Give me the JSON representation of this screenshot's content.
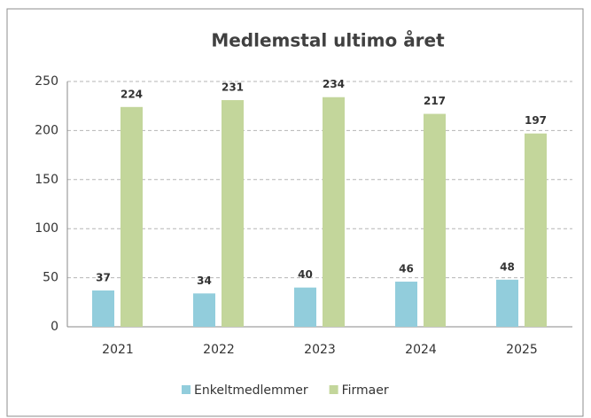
{
  "chart_data": {
    "type": "bar",
    "title": "Medlemstal ultimo året",
    "categories": [
      "2021",
      "2022",
      "2023",
      "2024",
      "2025"
    ],
    "series": [
      {
        "name": "Enkeltmedlemmer",
        "color": "#92cddc",
        "values": [
          37,
          34,
          40,
          46,
          48
        ]
      },
      {
        "name": "Firmaer",
        "color": "#c3d69b",
        "values": [
          224,
          231,
          234,
          217,
          197
        ]
      }
    ],
    "ylim": [
      0,
      250
    ],
    "yticks": [
      0,
      50,
      100,
      150,
      200,
      250
    ],
    "grid": true,
    "legend": "bottom"
  }
}
